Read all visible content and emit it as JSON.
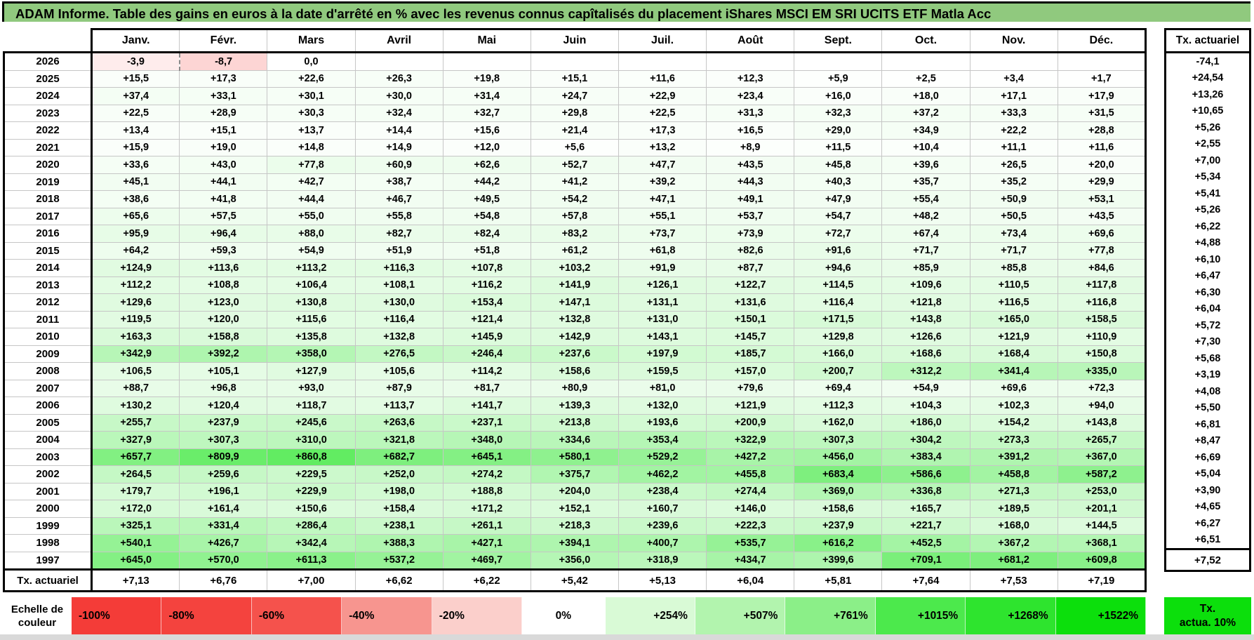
{
  "title": "ADAM Informe. Table des gains en euros à la date d'arrêté en % avec les revenus connus capîtalisés du placement iShares MSCI EM SRI UCITS ETF Matla Acc",
  "columns": [
    "Janv.",
    "Févr.",
    "Mars",
    "Avril",
    "Mai",
    "Juin",
    "Juil.",
    "Août",
    "Sept.",
    "Oct.",
    "Nov.",
    "Déc."
  ],
  "right_column_header": "Tx. actuariel",
  "footer_label": "Tx. actuariel",
  "rows": [
    {
      "year": "2026",
      "values": [
        "-3,9",
        "-8,7",
        "0,0",
        "",
        "",
        "",
        "",
        "",
        "",
        "",
        "",
        ""
      ],
      "tx": "-74,1"
    },
    {
      "year": "2025",
      "values": [
        "+15,5",
        "+17,3",
        "+22,6",
        "+26,3",
        "+19,8",
        "+15,1",
        "+11,6",
        "+12,3",
        "+5,9",
        "+2,5",
        "+3,4",
        "+1,7"
      ],
      "tx": "+24,54"
    },
    {
      "year": "2024",
      "values": [
        "+37,4",
        "+33,1",
        "+30,1",
        "+30,0",
        "+31,4",
        "+24,7",
        "+22,9",
        "+23,4",
        "+16,0",
        "+18,0",
        "+17,1",
        "+17,9"
      ],
      "tx": "+13,26"
    },
    {
      "year": "2023",
      "values": [
        "+22,5",
        "+28,9",
        "+30,3",
        "+32,4",
        "+32,7",
        "+29,8",
        "+22,5",
        "+31,3",
        "+32,3",
        "+37,2",
        "+33,3",
        "+31,5"
      ],
      "tx": "+10,65"
    },
    {
      "year": "2022",
      "values": [
        "+13,4",
        "+15,1",
        "+13,7",
        "+14,4",
        "+15,6",
        "+21,4",
        "+17,3",
        "+16,5",
        "+29,0",
        "+34,9",
        "+22,2",
        "+28,8"
      ],
      "tx": "+5,26"
    },
    {
      "year": "2021",
      "values": [
        "+15,9",
        "+19,0",
        "+14,8",
        "+14,9",
        "+12,0",
        "+5,6",
        "+13,2",
        "+8,9",
        "+11,5",
        "+10,4",
        "+11,1",
        "+11,6"
      ],
      "tx": "+2,55"
    },
    {
      "year": "2020",
      "values": [
        "+33,6",
        "+43,0",
        "+77,8",
        "+60,9",
        "+62,6",
        "+52,7",
        "+47,7",
        "+43,5",
        "+45,8",
        "+39,6",
        "+26,5",
        "+20,0"
      ],
      "tx": "+7,00"
    },
    {
      "year": "2019",
      "values": [
        "+45,1",
        "+44,1",
        "+42,7",
        "+38,7",
        "+44,2",
        "+41,2",
        "+39,2",
        "+44,3",
        "+40,3",
        "+35,7",
        "+35,2",
        "+29,9"
      ],
      "tx": "+5,34"
    },
    {
      "year": "2018",
      "values": [
        "+38,6",
        "+41,8",
        "+44,4",
        "+46,7",
        "+49,5",
        "+54,2",
        "+47,1",
        "+49,1",
        "+47,9",
        "+55,4",
        "+50,9",
        "+53,1"
      ],
      "tx": "+5,41"
    },
    {
      "year": "2017",
      "values": [
        "+65,6",
        "+57,5",
        "+55,0",
        "+55,8",
        "+54,8",
        "+57,8",
        "+55,1",
        "+53,7",
        "+54,7",
        "+48,2",
        "+50,5",
        "+43,5"
      ],
      "tx": "+5,26"
    },
    {
      "year": "2016",
      "values": [
        "+95,9",
        "+96,4",
        "+88,0",
        "+82,7",
        "+82,4",
        "+83,2",
        "+73,7",
        "+73,9",
        "+72,7",
        "+67,4",
        "+73,4",
        "+69,6"
      ],
      "tx": "+6,22"
    },
    {
      "year": "2015",
      "values": [
        "+64,2",
        "+59,3",
        "+54,9",
        "+51,9",
        "+51,8",
        "+61,2",
        "+61,8",
        "+82,6",
        "+91,6",
        "+71,7",
        "+71,7",
        "+77,8"
      ],
      "tx": "+4,88"
    },
    {
      "year": "2014",
      "values": [
        "+124,9",
        "+113,6",
        "+113,2",
        "+116,3",
        "+107,8",
        "+103,2",
        "+91,9",
        "+87,7",
        "+94,6",
        "+85,9",
        "+85,8",
        "+84,6"
      ],
      "tx": "+6,10"
    },
    {
      "year": "2013",
      "values": [
        "+112,2",
        "+108,8",
        "+106,4",
        "+108,1",
        "+116,2",
        "+141,9",
        "+126,1",
        "+122,7",
        "+114,5",
        "+109,6",
        "+110,5",
        "+117,8"
      ],
      "tx": "+6,47"
    },
    {
      "year": "2012",
      "values": [
        "+129,6",
        "+123,0",
        "+130,8",
        "+130,0",
        "+153,4",
        "+147,1",
        "+131,1",
        "+131,6",
        "+116,4",
        "+121,8",
        "+116,5",
        "+116,8"
      ],
      "tx": "+6,30"
    },
    {
      "year": "2011",
      "values": [
        "+119,5",
        "+120,0",
        "+115,6",
        "+116,4",
        "+121,4",
        "+132,8",
        "+131,0",
        "+150,1",
        "+171,5",
        "+143,8",
        "+165,0",
        "+158,5"
      ],
      "tx": "+6,04"
    },
    {
      "year": "2010",
      "values": [
        "+163,3",
        "+158,8",
        "+135,8",
        "+132,8",
        "+145,9",
        "+142,9",
        "+143,1",
        "+145,7",
        "+129,8",
        "+126,6",
        "+121,9",
        "+110,9"
      ],
      "tx": "+5,72"
    },
    {
      "year": "2009",
      "values": [
        "+342,9",
        "+392,2",
        "+358,0",
        "+276,5",
        "+246,4",
        "+237,6",
        "+197,9",
        "+185,7",
        "+166,0",
        "+168,6",
        "+168,4",
        "+150,8"
      ],
      "tx": "+7,30"
    },
    {
      "year": "2008",
      "values": [
        "+106,5",
        "+105,1",
        "+127,9",
        "+105,6",
        "+114,2",
        "+158,6",
        "+159,5",
        "+157,0",
        "+200,7",
        "+312,2",
        "+341,4",
        "+335,0"
      ],
      "tx": "+5,68"
    },
    {
      "year": "2007",
      "values": [
        "+88,7",
        "+96,8",
        "+93,0",
        "+87,9",
        "+81,7",
        "+80,9",
        "+81,0",
        "+79,6",
        "+69,4",
        "+54,9",
        "+69,6",
        "+72,3"
      ],
      "tx": "+3,19"
    },
    {
      "year": "2006",
      "values": [
        "+130,2",
        "+120,4",
        "+118,7",
        "+113,7",
        "+141,7",
        "+139,3",
        "+132,0",
        "+121,9",
        "+112,3",
        "+104,3",
        "+102,3",
        "+94,0"
      ],
      "tx": "+4,08"
    },
    {
      "year": "2005",
      "values": [
        "+255,7",
        "+237,9",
        "+245,6",
        "+263,6",
        "+237,1",
        "+213,8",
        "+193,6",
        "+200,9",
        "+162,0",
        "+186,0",
        "+154,2",
        "+143,8"
      ],
      "tx": "+5,50"
    },
    {
      "year": "2004",
      "values": [
        "+327,9",
        "+307,3",
        "+310,0",
        "+321,8",
        "+348,0",
        "+334,6",
        "+353,4",
        "+322,9",
        "+307,3",
        "+304,2",
        "+273,3",
        "+265,7"
      ],
      "tx": "+6,81"
    },
    {
      "year": "2003",
      "values": [
        "+657,7",
        "+809,9",
        "+860,8",
        "+682,7",
        "+645,1",
        "+580,1",
        "+529,2",
        "+427,2",
        "+456,0",
        "+383,4",
        "+391,2",
        "+367,0"
      ],
      "tx": "+8,47"
    },
    {
      "year": "2002",
      "values": [
        "+264,5",
        "+259,6",
        "+229,5",
        "+252,0",
        "+274,2",
        "+375,7",
        "+462,2",
        "+455,8",
        "+683,4",
        "+586,6",
        "+458,8",
        "+587,2"
      ],
      "tx": "+6,69"
    },
    {
      "year": "2001",
      "values": [
        "+179,7",
        "+196,1",
        "+229,9",
        "+198,0",
        "+188,8",
        "+204,0",
        "+238,4",
        "+274,4",
        "+369,0",
        "+336,8",
        "+271,3",
        "+253,0"
      ],
      "tx": "+5,04"
    },
    {
      "year": "2000",
      "values": [
        "+172,0",
        "+161,4",
        "+150,6",
        "+158,4",
        "+171,2",
        "+152,1",
        "+160,7",
        "+146,0",
        "+158,6",
        "+165,7",
        "+189,5",
        "+201,1"
      ],
      "tx": "+3,90"
    },
    {
      "year": "1999",
      "values": [
        "+325,1",
        "+331,4",
        "+286,4",
        "+238,1",
        "+261,1",
        "+218,3",
        "+239,6",
        "+222,3",
        "+237,9",
        "+221,7",
        "+168,0",
        "+144,5"
      ],
      "tx": "+4,65"
    },
    {
      "year": "1998",
      "values": [
        "+540,1",
        "+426,7",
        "+342,4",
        "+388,3",
        "+427,1",
        "+394,1",
        "+400,7",
        "+535,7",
        "+616,2",
        "+452,5",
        "+367,2",
        "+368,1"
      ],
      "tx": "+6,27"
    },
    {
      "year": "1997",
      "values": [
        "+645,0",
        "+570,0",
        "+611,3",
        "+537,2",
        "+469,7",
        "+356,0",
        "+318,9",
        "+434,7",
        "+399,6",
        "+709,1",
        "+681,2",
        "+609,8"
      ],
      "tx": "+6,51"
    }
  ],
  "footer": {
    "values": [
      "+7,13",
      "+6,76",
      "+7,00",
      "+6,62",
      "+6,22",
      "+5,42",
      "+5,13",
      "+6,04",
      "+5,81",
      "+7,64",
      "+7,53",
      "+7,19"
    ],
    "tx": "+7,52"
  },
  "legend": {
    "label": "Echelle de couleur",
    "cells": [
      {
        "label": "-100%",
        "color": "#f43c38",
        "align": "left"
      },
      {
        "label": "-80%",
        "color": "#f4433e",
        "align": "left"
      },
      {
        "label": "-60%",
        "color": "#f5524c",
        "align": "left"
      },
      {
        "label": "-40%",
        "color": "#f7958f",
        "align": "left"
      },
      {
        "label": "-20%",
        "color": "#fbcfcb",
        "align": "left"
      },
      {
        "label": "0%",
        "color": "#ffffff",
        "align": "center"
      },
      {
        "label": "+254%",
        "color": "#d9fad6",
        "align": "right"
      },
      {
        "label": "+507%",
        "color": "#b2f4ae",
        "align": "right"
      },
      {
        "label": "+761%",
        "color": "#8bef88",
        "align": "right"
      },
      {
        "label": "+1015%",
        "color": "#4ce94c",
        "align": "right"
      },
      {
        "label": "+1268%",
        "color": "#2ee42e",
        "align": "right"
      },
      {
        "label": "+1522%",
        "color": "#0cdf0c",
        "align": "right"
      }
    ],
    "right_box": {
      "line1": "Tx.",
      "line2": "actua. 10%",
      "color": "#0cdf0c"
    }
  },
  "colors": {
    "title_bg": "#90c97e",
    "grid": "#c6c6c6",
    "negative_max": "#f43e3a",
    "positive_max": "#00e000",
    "bottom_strip": "#d9d9d9"
  }
}
